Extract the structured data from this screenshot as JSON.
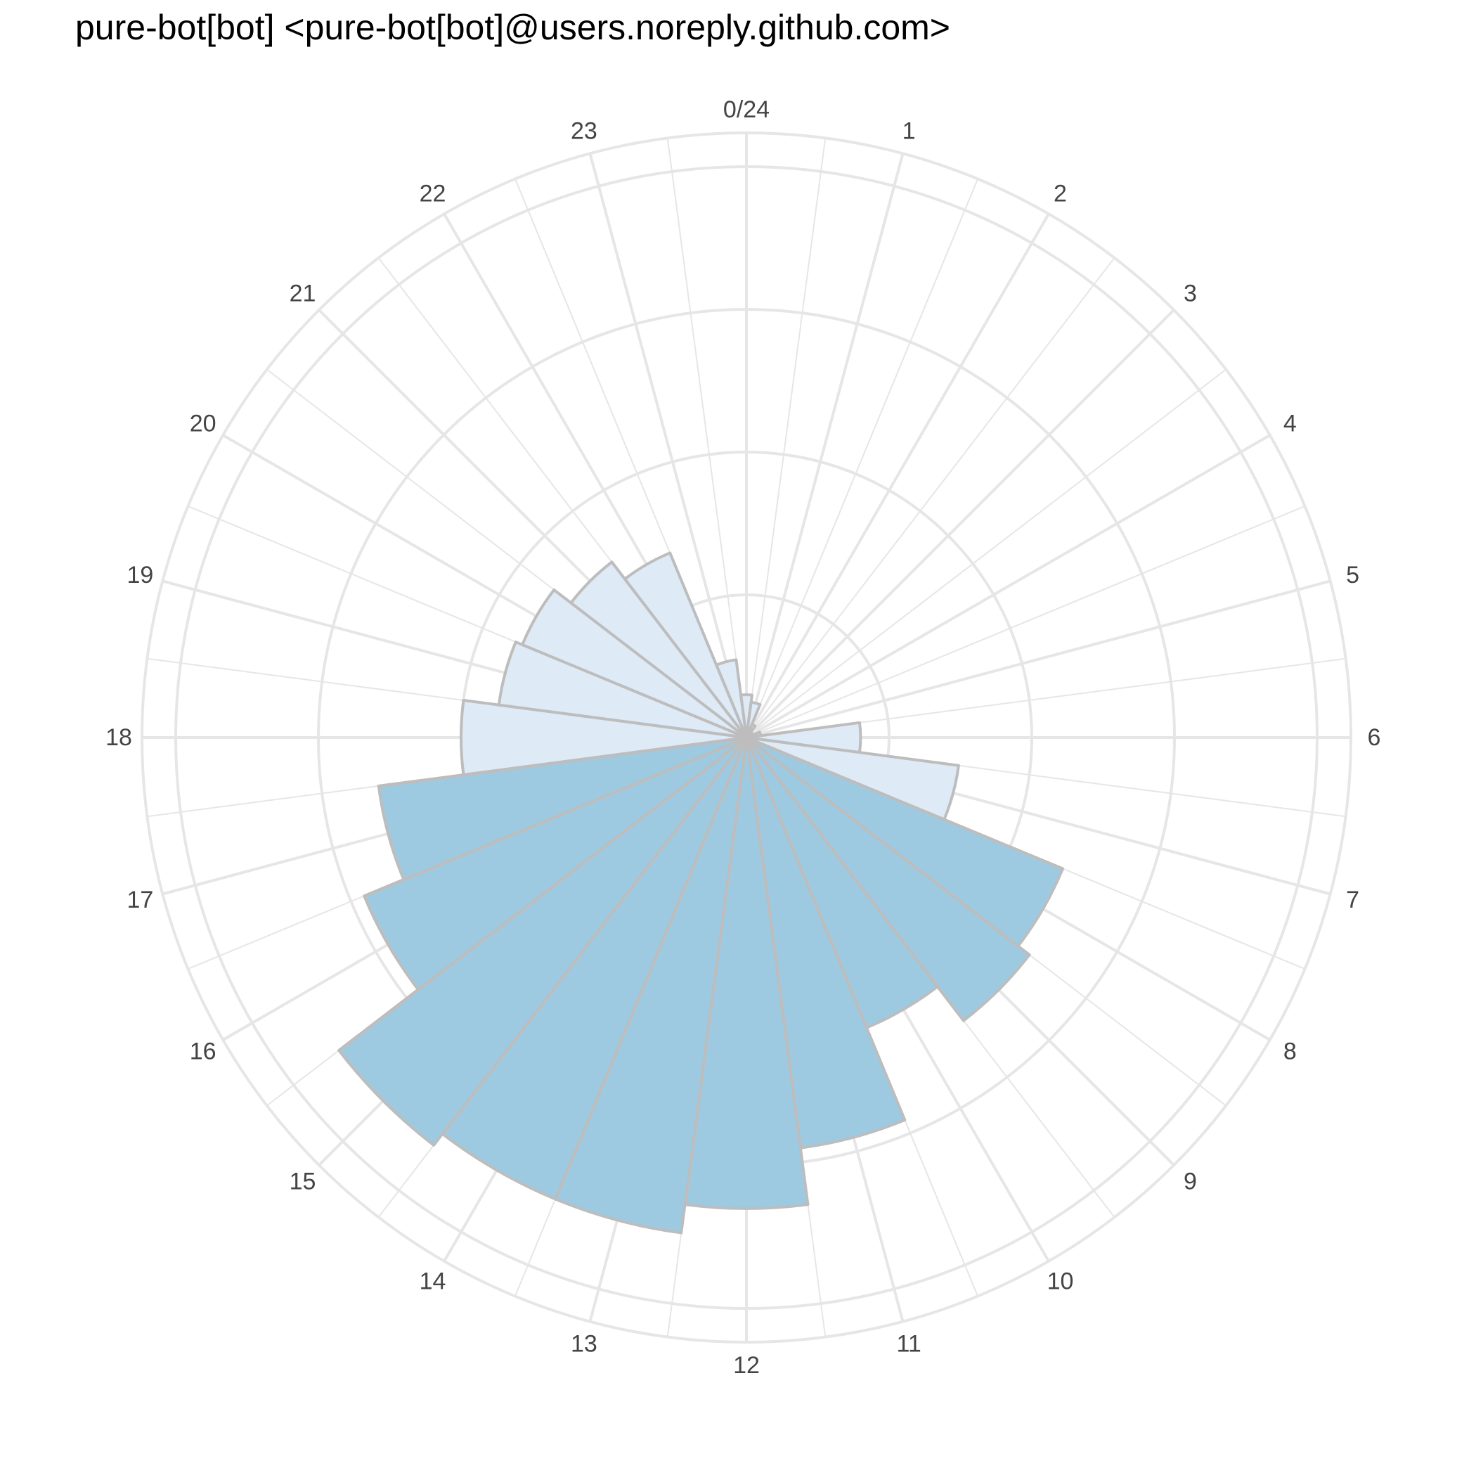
{
  "title": "pure-bot[bot] <pure-bot[bot]@users.noreply.github.com>",
  "colors": {
    "background": "#ffffff",
    "grid": "#e6e6e6",
    "bar_outline": "#bdbdbd",
    "bar_low": "#deeaf6",
    "bar_high": "#9ecae1",
    "tick_text": "#444444",
    "title_text": "#000000"
  },
  "chart_data": {
    "type": "bar",
    "subtype": "polar-wind-rose",
    "title": "pure-bot[bot] <pure-bot[bot]@users.noreply.github.com>",
    "angular_axis": {
      "direction": "clockwise",
      "rotation_start": "top",
      "tick_labels": [
        "0/24",
        "1",
        "2",
        "3",
        "4",
        "5",
        "6",
        "7",
        "8",
        "9",
        "10",
        "11",
        "12",
        "13",
        "14",
        "15",
        "16",
        "17",
        "18",
        "19",
        "20",
        "21",
        "22",
        "23"
      ]
    },
    "radial_axis": {
      "range": [
        0,
        4.2
      ],
      "gridlines": [
        1,
        2,
        3,
        4
      ],
      "tick_labels_visible": false
    },
    "grid": true,
    "legend": "none",
    "categories": [
      0,
      1,
      2,
      3,
      4,
      5,
      6,
      7,
      8,
      9,
      10,
      11,
      12,
      13,
      14,
      15,
      16,
      17,
      18,
      19,
      20,
      21,
      22,
      23
    ],
    "values": [
      0.3,
      0.25,
      0.1,
      0.05,
      0.05,
      0.1,
      0.8,
      1.5,
      2.4,
      2.5,
      2.2,
      2.9,
      3.3,
      3.5,
      3.5,
      3.6,
      2.9,
      2.6,
      2.0,
      1.75,
      1.7,
      1.55,
      1.4,
      0.55
    ],
    "color_rule": {
      "high_threshold": 2.2,
      "high_color": "#9ecae1",
      "low_color": "#deeaf6"
    }
  }
}
